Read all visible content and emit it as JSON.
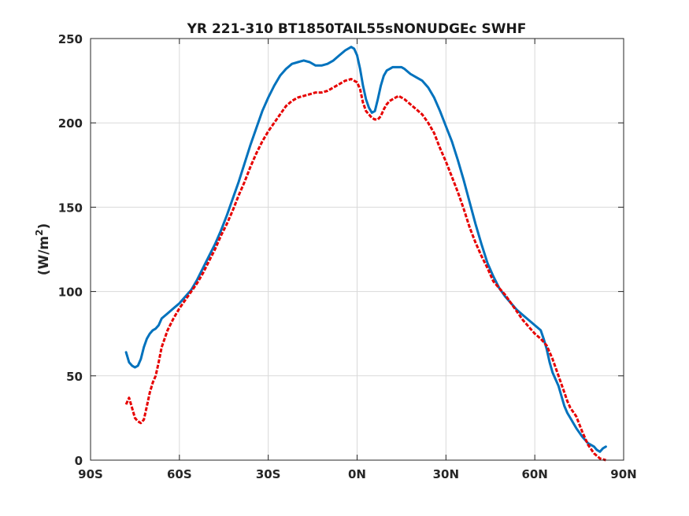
{
  "chart_data": {
    "type": "line",
    "title": "YR 221-310 BT1850TAIL55sNONUDGEc    SWHF",
    "xlabel": "",
    "ylabel": "(W/m",
    "ylabel_sup": "2",
    "ylabel_close": ")",
    "xlim": [
      -90,
      90
    ],
    "ylim": [
      0,
      250
    ],
    "grid": true,
    "x_ticks": [
      {
        "value": -90,
        "label": "90S"
      },
      {
        "value": -60,
        "label": "60S"
      },
      {
        "value": -30,
        "label": "30S"
      },
      {
        "value": 0,
        "label": "0N"
      },
      {
        "value": 30,
        "label": "30N"
      },
      {
        "value": 60,
        "label": "60N"
      },
      {
        "value": 90,
        "label": "90N"
      }
    ],
    "y_ticks": [
      {
        "value": 0,
        "label": "0"
      },
      {
        "value": 50,
        "label": "50"
      },
      {
        "value": 100,
        "label": "100"
      },
      {
        "value": 150,
        "label": "150"
      },
      {
        "value": 200,
        "label": "200"
      },
      {
        "value": 250,
        "label": "250"
      }
    ],
    "series": [
      {
        "color": "#0072BD",
        "style": "solid",
        "points": [
          [
            -78,
            64
          ],
          [
            -77,
            58
          ],
          [
            -76,
            56
          ],
          [
            -75,
            55
          ],
          [
            -74,
            56
          ],
          [
            -73,
            60
          ],
          [
            -72,
            67
          ],
          [
            -71,
            72
          ],
          [
            -70,
            75
          ],
          [
            -69,
            77
          ],
          [
            -68,
            78
          ],
          [
            -67,
            80
          ],
          [
            -66,
            84
          ],
          [
            -64,
            87
          ],
          [
            -62,
            90
          ],
          [
            -60,
            93
          ],
          [
            -58,
            97
          ],
          [
            -56,
            101
          ],
          [
            -54,
            107
          ],
          [
            -52,
            114
          ],
          [
            -50,
            121
          ],
          [
            -48,
            128
          ],
          [
            -46,
            136
          ],
          [
            -44,
            145
          ],
          [
            -42,
            155
          ],
          [
            -40,
            165
          ],
          [
            -38,
            176
          ],
          [
            -36,
            187
          ],
          [
            -34,
            197
          ],
          [
            -32,
            207
          ],
          [
            -30,
            215
          ],
          [
            -28,
            222
          ],
          [
            -26,
            228
          ],
          [
            -24,
            232
          ],
          [
            -22,
            235
          ],
          [
            -20,
            236
          ],
          [
            -18,
            237
          ],
          [
            -16,
            236
          ],
          [
            -14,
            234
          ],
          [
            -12,
            234
          ],
          [
            -10,
            235
          ],
          [
            -8,
            237
          ],
          [
            -6,
            240
          ],
          [
            -4,
            243
          ],
          [
            -2,
            245
          ],
          [
            -1,
            244
          ],
          [
            0,
            240
          ],
          [
            1,
            232
          ],
          [
            2,
            222
          ],
          [
            3,
            214
          ],
          [
            4,
            209
          ],
          [
            5,
            206
          ],
          [
            6,
            207
          ],
          [
            7,
            214
          ],
          [
            8,
            222
          ],
          [
            9,
            228
          ],
          [
            10,
            231
          ],
          [
            11,
            232
          ],
          [
            12,
            233
          ],
          [
            13,
            233
          ],
          [
            14,
            233
          ],
          [
            15,
            233
          ],
          [
            16,
            232
          ],
          [
            18,
            229
          ],
          [
            20,
            227
          ],
          [
            22,
            225
          ],
          [
            24,
            221
          ],
          [
            26,
            215
          ],
          [
            28,
            207
          ],
          [
            30,
            198
          ],
          [
            32,
            189
          ],
          [
            34,
            178
          ],
          [
            36,
            166
          ],
          [
            38,
            153
          ],
          [
            40,
            140
          ],
          [
            42,
            128
          ],
          [
            44,
            117
          ],
          [
            46,
            109
          ],
          [
            48,
            102
          ],
          [
            50,
            97
          ],
          [
            52,
            93
          ],
          [
            54,
            89
          ],
          [
            56,
            86
          ],
          [
            58,
            83
          ],
          [
            60,
            80
          ],
          [
            62,
            77
          ],
          [
            63,
            72
          ],
          [
            64,
            66
          ],
          [
            65,
            58
          ],
          [
            66,
            52
          ],
          [
            67,
            48
          ],
          [
            68,
            44
          ],
          [
            69,
            38
          ],
          [
            70,
            32
          ],
          [
            71,
            28
          ],
          [
            72,
            25
          ],
          [
            74,
            19
          ],
          [
            76,
            14
          ],
          [
            78,
            10
          ],
          [
            80,
            8
          ],
          [
            81,
            6
          ],
          [
            82,
            5
          ],
          [
            83,
            7
          ],
          [
            84,
            8
          ]
        ]
      },
      {
        "color": "#E60000",
        "style": "dashed",
        "points": [
          [
            -78,
            33
          ],
          [
            -77,
            37
          ],
          [
            -76,
            31
          ],
          [
            -75,
            25
          ],
          [
            -74,
            23
          ],
          [
            -73,
            22
          ],
          [
            -72,
            24
          ],
          [
            -71,
            32
          ],
          [
            -70,
            40
          ],
          [
            -69,
            46
          ],
          [
            -68,
            50
          ],
          [
            -67,
            58
          ],
          [
            -66,
            67
          ],
          [
            -64,
            77
          ],
          [
            -62,
            84
          ],
          [
            -60,
            90
          ],
          [
            -58,
            95
          ],
          [
            -56,
            100
          ],
          [
            -54,
            105
          ],
          [
            -52,
            111
          ],
          [
            -50,
            118
          ],
          [
            -48,
            125
          ],
          [
            -46,
            133
          ],
          [
            -44,
            140
          ],
          [
            -42,
            148
          ],
          [
            -40,
            157
          ],
          [
            -38,
            165
          ],
          [
            -36,
            174
          ],
          [
            -34,
            182
          ],
          [
            -32,
            189
          ],
          [
            -30,
            195
          ],
          [
            -28,
            200
          ],
          [
            -26,
            205
          ],
          [
            -24,
            210
          ],
          [
            -22,
            213
          ],
          [
            -20,
            215
          ],
          [
            -18,
            216
          ],
          [
            -16,
            217
          ],
          [
            -14,
            218
          ],
          [
            -12,
            218
          ],
          [
            -10,
            219
          ],
          [
            -8,
            221
          ],
          [
            -6,
            223
          ],
          [
            -4,
            225
          ],
          [
            -2,
            226
          ],
          [
            0,
            224
          ],
          [
            1,
            220
          ],
          [
            2,
            212
          ],
          [
            3,
            207
          ],
          [
            4,
            205
          ],
          [
            5,
            203
          ],
          [
            6,
            202
          ],
          [
            7,
            202
          ],
          [
            8,
            204
          ],
          [
            9,
            208
          ],
          [
            10,
            211
          ],
          [
            11,
            213
          ],
          [
            12,
            214
          ],
          [
            13,
            215
          ],
          [
            14,
            216
          ],
          [
            15,
            215
          ],
          [
            16,
            214
          ],
          [
            18,
            211
          ],
          [
            20,
            208
          ],
          [
            22,
            205
          ],
          [
            24,
            200
          ],
          [
            26,
            194
          ],
          [
            28,
            185
          ],
          [
            30,
            177
          ],
          [
            32,
            168
          ],
          [
            34,
            159
          ],
          [
            36,
            149
          ],
          [
            38,
            138
          ],
          [
            40,
            129
          ],
          [
            42,
            121
          ],
          [
            44,
            114
          ],
          [
            46,
            106
          ],
          [
            48,
            102
          ],
          [
            50,
            98
          ],
          [
            52,
            93
          ],
          [
            54,
            88
          ],
          [
            56,
            83
          ],
          [
            58,
            79
          ],
          [
            60,
            75
          ],
          [
            62,
            72
          ],
          [
            64,
            68
          ],
          [
            65,
            64
          ],
          [
            66,
            60
          ],
          [
            67,
            55
          ],
          [
            68,
            50
          ],
          [
            69,
            45
          ],
          [
            70,
            40
          ],
          [
            71,
            35
          ],
          [
            72,
            31
          ],
          [
            74,
            26
          ],
          [
            76,
            17
          ],
          [
            78,
            9
          ],
          [
            80,
            4
          ],
          [
            82,
            1
          ],
          [
            84,
            0
          ]
        ]
      }
    ]
  }
}
